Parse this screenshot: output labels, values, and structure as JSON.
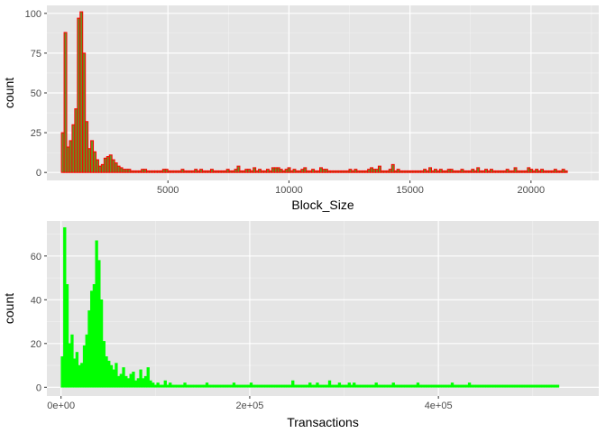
{
  "colors": {
    "panel_bg": "#e5e5e5",
    "grid_major": "#ffffff",
    "grid_minor": "#f2f2f2",
    "tick_text": "#4d4d4d",
    "bar1_fill": "#6b8e23",
    "bar1_stroke": "#ff0000",
    "bar2_fill": "#00ff00",
    "bar2_stroke": "#00ff00"
  },
  "chart_data": [
    {
      "type": "bar",
      "subtype": "histogram",
      "xlabel": "Block_Size",
      "ylabel": "count",
      "xlim": [
        0,
        22800
      ],
      "ylim": [
        -5,
        105
      ],
      "x_ticks": [
        5000,
        10000,
        15000,
        20000
      ],
      "x_tick_labels": [
        "5000",
        "10000",
        "15000",
        "20000"
      ],
      "y_ticks": [
        0,
        25,
        50,
        75,
        100
      ],
      "y_tick_labels": [
        "0",
        "25",
        "50",
        "75",
        "100"
      ],
      "grid": true,
      "bin_start": 600,
      "bin_width": 110,
      "values": [
        25,
        88,
        16,
        20,
        30,
        40,
        97,
        101,
        75,
        32,
        15,
        20,
        13,
        8,
        4,
        5,
        9,
        10,
        11,
        8,
        6,
        4,
        3,
        2,
        2,
        2,
        1,
        1,
        1,
        1,
        2,
        2,
        1,
        1,
        1,
        1,
        1,
        1,
        2,
        2,
        1,
        1,
        1,
        1,
        1,
        2,
        1,
        1,
        1,
        1,
        2,
        1,
        2,
        1,
        1,
        1,
        2,
        1,
        1,
        1,
        1,
        1,
        2,
        1,
        1,
        2,
        4,
        1,
        1,
        2,
        2,
        1,
        3,
        1,
        2,
        1,
        1,
        2,
        1,
        3,
        3,
        3,
        2,
        1,
        2,
        3,
        1,
        2,
        1,
        1,
        2,
        3,
        1,
        1,
        2,
        1,
        1,
        3,
        2,
        2,
        1,
        1,
        1,
        1,
        1,
        1,
        1,
        1,
        2,
        1,
        2,
        1,
        1,
        1,
        1,
        2,
        3,
        2,
        2,
        4,
        1,
        1,
        1,
        2,
        5,
        1,
        2,
        1,
        1,
        1,
        1,
        1,
        1,
        1,
        1,
        1,
        2,
        1,
        3,
        1,
        2,
        1,
        2,
        1,
        1,
        2,
        2,
        1,
        1,
        1,
        2,
        1,
        1,
        1,
        2,
        1,
        3,
        1,
        1,
        2,
        1,
        2,
        1,
        1,
        1,
        1,
        1,
        2,
        1,
        1,
        3,
        1,
        1,
        1,
        1,
        3,
        2,
        1,
        2,
        1,
        2,
        1,
        1,
        1,
        1,
        2,
        1,
        1,
        2,
        1
      ]
    },
    {
      "type": "bar",
      "subtype": "histogram",
      "xlabel": "Transactions",
      "ylabel": "count",
      "xlim": [
        -15000,
        570000
      ],
      "ylim": [
        -4,
        76
      ],
      "x_ticks": [
        0,
        200000,
        400000
      ],
      "x_tick_labels": [
        "0e+00",
        "2e+05",
        "4e+05"
      ],
      "y_ticks": [
        0,
        20,
        40,
        60
      ],
      "y_tick_labels": [
        "0",
        "20",
        "40",
        "60"
      ],
      "grid": true,
      "bin_start": 0,
      "bin_width": 2600,
      "values": [
        14,
        73,
        47,
        20,
        24,
        13,
        16,
        10,
        11,
        19,
        24,
        35,
        44,
        47,
        67,
        58,
        40,
        21,
        14,
        12,
        10,
        8,
        11,
        5,
        6,
        9,
        5,
        4,
        6,
        7,
        3,
        4,
        8,
        4,
        5,
        9,
        3,
        2,
        1,
        2,
        1,
        1,
        3,
        1,
        2,
        1,
        1,
        1,
        1,
        1,
        2,
        1,
        1,
        1,
        1,
        1,
        1,
        1,
        1,
        2,
        1,
        1,
        1,
        1,
        1,
        1,
        1,
        1,
        1,
        1,
        2,
        1,
        1,
        1,
        1,
        1,
        1,
        2,
        1,
        1,
        1,
        1,
        1,
        1,
        1,
        1,
        1,
        1,
        1,
        1,
        1,
        1,
        1,
        1,
        3,
        1,
        1,
        1,
        1,
        1,
        1,
        2,
        1,
        1,
        2,
        1,
        1,
        1,
        1,
        3,
        1,
        1,
        1,
        2,
        1,
        1,
        1,
        2,
        1,
        2,
        1,
        1,
        1,
        1,
        1,
        1,
        1,
        1,
        2,
        1,
        1,
        1,
        1,
        1,
        1,
        2,
        1,
        1,
        1,
        1,
        1,
        1,
        1,
        1,
        1,
        2,
        1,
        1,
        1,
        1,
        1,
        1,
        1,
        1,
        1,
        1,
        1,
        1,
        1,
        2,
        1,
        1,
        1,
        1,
        1,
        1,
        2,
        1,
        1,
        1,
        1,
        1,
        1,
        1,
        1,
        1,
        1,
        1,
        1,
        1,
        1,
        1,
        1,
        1,
        1,
        1,
        1,
        1,
        1,
        1,
        1,
        1,
        1,
        1,
        1,
        1,
        1,
        1,
        1,
        1,
        1,
        1,
        1
      ]
    }
  ]
}
